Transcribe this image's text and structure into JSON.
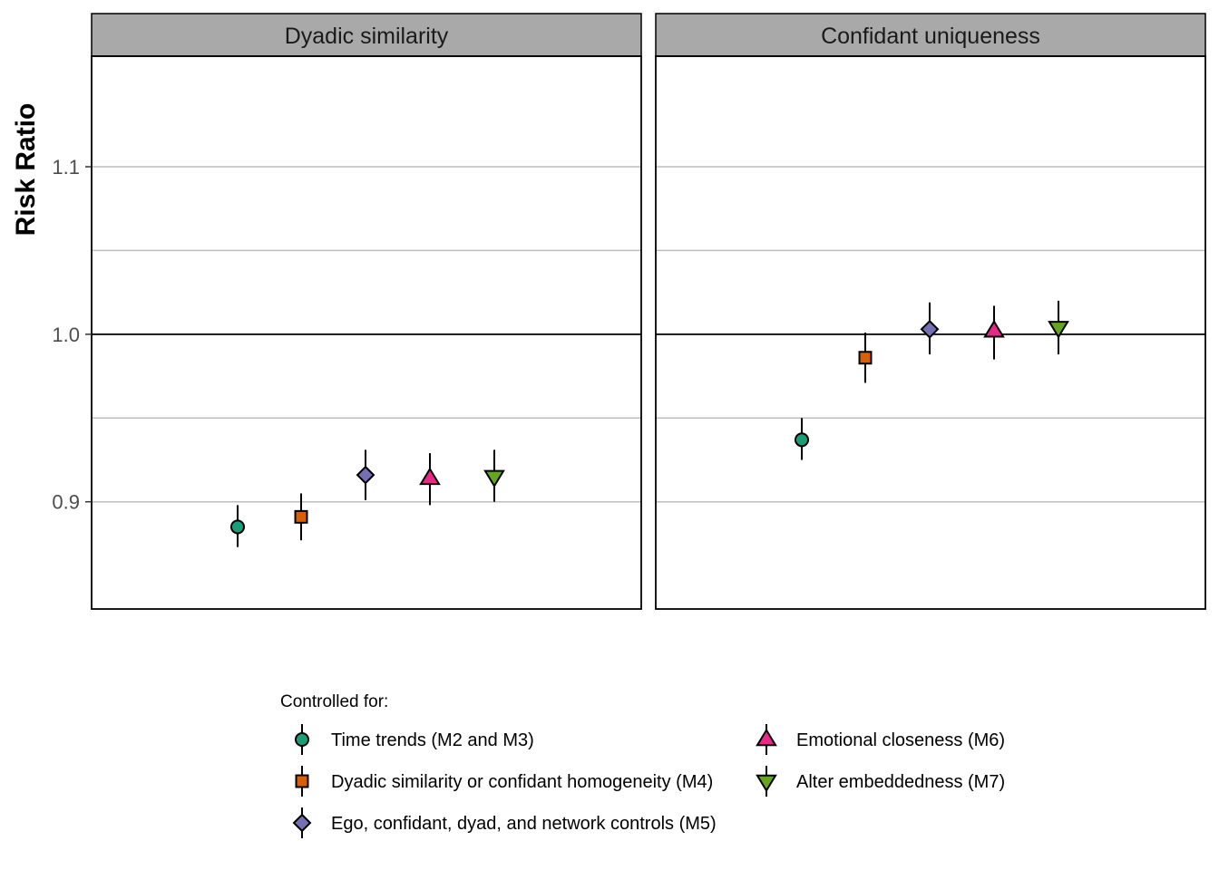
{
  "chart_data": {
    "type": "scatter",
    "ylabel": "Risk Ratio",
    "xlabel": "",
    "ylim": [
      0.836,
      1.166
    ],
    "yticks": [
      0.9,
      1.0,
      1.1
    ],
    "ytick_labels": [
      "0.9",
      "1.0",
      "1.1"
    ],
    "minor_gridlines": [
      0.95,
      1.05
    ],
    "reference_line": 1.0,
    "grid": true,
    "legend_placement": "bottom",
    "legend_title": "Controlled for:",
    "panels": [
      {
        "name": "Dyadic similarity",
        "points": [
          {
            "series": 0,
            "y": 0.885,
            "lower": 0.873,
            "upper": 0.898
          },
          {
            "series": 1,
            "y": 0.891,
            "lower": 0.877,
            "upper": 0.905
          },
          {
            "series": 2,
            "y": 0.916,
            "lower": 0.901,
            "upper": 0.931
          },
          {
            "series": 3,
            "y": 0.914,
            "lower": 0.898,
            "upper": 0.929
          },
          {
            "series": 4,
            "y": 0.915,
            "lower": 0.9,
            "upper": 0.931
          }
        ]
      },
      {
        "name": "Confidant uniqueness",
        "points": [
          {
            "series": 0,
            "y": 0.937,
            "lower": 0.925,
            "upper": 0.95
          },
          {
            "series": 1,
            "y": 0.986,
            "lower": 0.971,
            "upper": 1.001
          },
          {
            "series": 2,
            "y": 1.003,
            "lower": 0.988,
            "upper": 1.019
          },
          {
            "series": 3,
            "y": 1.002,
            "lower": 0.985,
            "upper": 1.017
          },
          {
            "series": 4,
            "y": 1.004,
            "lower": 0.988,
            "upper": 1.02
          }
        ]
      }
    ],
    "series": [
      {
        "name": "Time trends (M2 and M3)",
        "shape": "circle",
        "color": "#1b9e77"
      },
      {
        "name": "Dyadic similarity or confidant homogeneity (M4)",
        "shape": "square",
        "color": "#d95f02"
      },
      {
        "name": "Ego, confidant, dyad, and network controls (M5)",
        "shape": "diamond",
        "color": "#7570b3"
      },
      {
        "name": "Emotional closeness (M6)",
        "shape": "triangle-up",
        "color": "#e7298a"
      },
      {
        "name": "Alter embeddedness (M7)",
        "shape": "triangle-down",
        "color": "#66a61e"
      }
    ],
    "colors": {
      "strip_fill": "#a9a9a9",
      "gridline": "#bebebe",
      "reference_line": "#000000",
      "panel_border": "#000000"
    }
  }
}
